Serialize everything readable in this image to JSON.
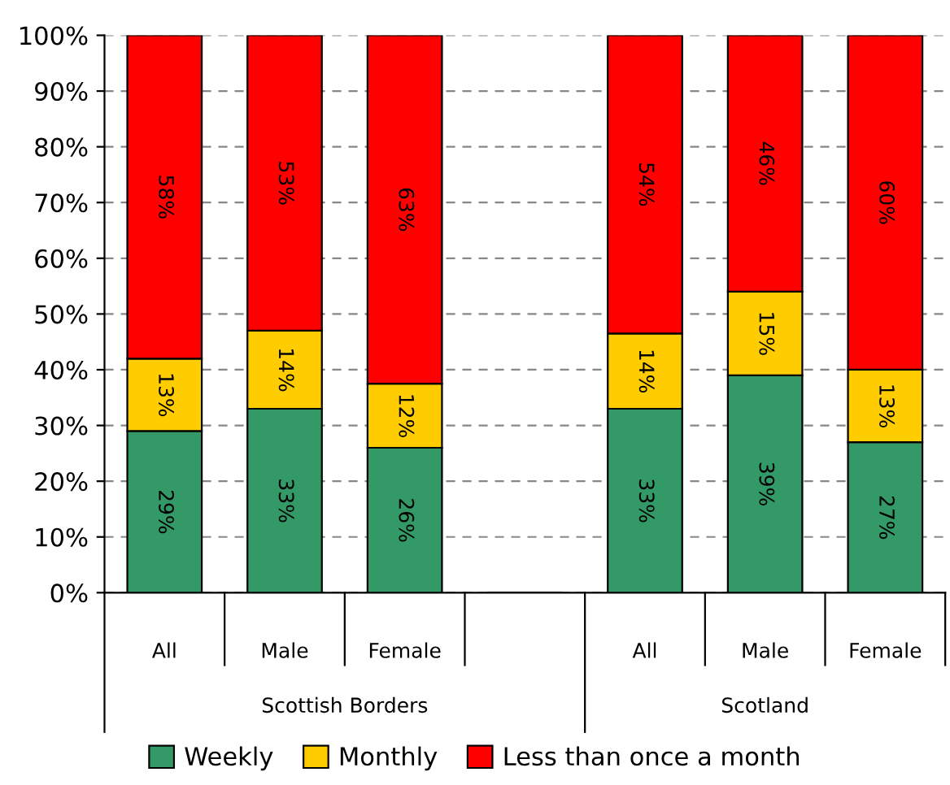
{
  "chart_data": {
    "type": "bar",
    "stacked": true,
    "categories": [
      "All",
      "Male",
      "Female",
      null,
      "All",
      "Male",
      "Female"
    ],
    "series": [
      {
        "name": "Weekly",
        "color": "#339966",
        "values": [
          29,
          33,
          26,
          null,
          33,
          39,
          27
        ],
        "value_labels": [
          "29%",
          "33%",
          "26%",
          null,
          "33%",
          "39%",
          "27%"
        ]
      },
      {
        "name": "Monthly",
        "color": "#ffcc00",
        "values": [
          13,
          14,
          11.5,
          null,
          13.5,
          15,
          13
        ],
        "value_labels": [
          "13%",
          "14%",
          "12%",
          null,
          "14%",
          "15%",
          "13%"
        ]
      },
      {
        "name": "Less than once a month",
        "color": "#ff0000",
        "values": [
          58,
          53,
          62.5,
          null,
          53.5,
          46,
          60
        ],
        "value_labels": [
          "58%",
          "53%",
          "63%",
          null,
          "54%",
          "46%",
          "60%"
        ]
      }
    ],
    "ylim": [
      0,
      100
    ],
    "yticks": [
      {
        "value": 0,
        "label": "0%"
      },
      {
        "value": 10,
        "label": "10%"
      },
      {
        "value": 20,
        "label": "20%"
      },
      {
        "value": 30,
        "label": "30%"
      },
      {
        "value": 40,
        "label": "40%"
      },
      {
        "value": 50,
        "label": "50%"
      },
      {
        "value": 60,
        "label": "60%"
      },
      {
        "value": 70,
        "label": "70%"
      },
      {
        "value": 80,
        "label": "80%"
      },
      {
        "value": 90,
        "label": "90%"
      },
      {
        "value": 100,
        "label": "100%"
      }
    ],
    "grid": "y",
    "legend": "bottom",
    "annotations": [
      "Scottish Borders",
      "Scotland"
    ]
  }
}
